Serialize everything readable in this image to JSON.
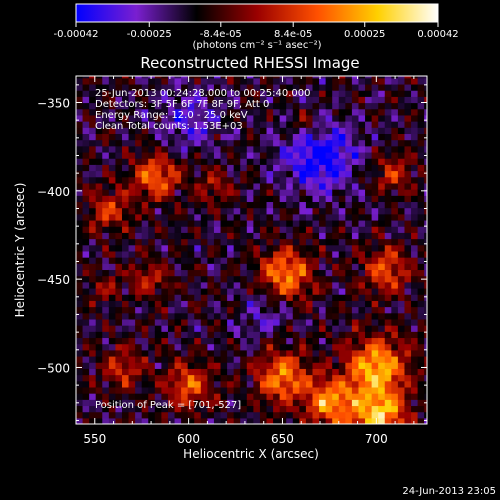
{
  "chart_data": {
    "type": "heatmap",
    "title": "Reconstructed RHESSI Image",
    "xlabel": "Heliocentric X (arcsec)",
    "ylabel": "Heliocentric Y (arcsec)",
    "xlim": [
      540,
      727
    ],
    "ylim": [
      -532,
      -335
    ],
    "x_ticks": [
      550,
      600,
      650,
      700
    ],
    "y_ticks": [
      -350,
      -400,
      -450,
      -500
    ],
    "colorbar": {
      "min": -0.00042,
      "max": 0.00042,
      "ticks": [
        -0.00042,
        -0.00025,
        -8.4e-05,
        8.4e-05,
        0.00025,
        0.00042
      ],
      "tick_labels": [
        "-0.00042",
        "-0.00025",
        "-8.4e-05",
        "8.4e-05",
        "0.00025",
        "0.00042"
      ],
      "unit_label": "(photons cm⁻² s⁻¹ asec⁻²)",
      "colors": [
        "#0000ff",
        "#7a1fd0",
        "#000000",
        "#9a0000",
        "#ff5000",
        "#ffd000",
        "#ffffff"
      ]
    },
    "info_lines": [
      "25-Jun-2013 00:24:28.000 to 00:25:40.000",
      "Detectors: 3F 5F 6F 7F 8F 9F, Att 0",
      "Energy Range: 12.0 - 25.0 keV",
      "Clean    Total counts: 1.53E+03"
    ],
    "peak_label": "Position of Peak = [701,-527]",
    "peak_position": [
      701,
      -527
    ],
    "background_level": -0.00015,
    "sources": [
      {
        "x": 583,
        "y": -392,
        "sigma": 9,
        "amp": 0.0003
      },
      {
        "x": 558,
        "y": -410,
        "sigma": 8,
        "amp": 0.00022
      },
      {
        "x": 615,
        "y": -398,
        "sigma": 7,
        "amp": 0.00016
      },
      {
        "x": 663,
        "y": -363,
        "sigma": 6,
        "amp": 0.00016
      },
      {
        "x": 710,
        "y": -390,
        "sigma": 8,
        "amp": 0.0002
      },
      {
        "x": 652,
        "y": -447,
        "sigma": 10,
        "amp": 0.00034
      },
      {
        "x": 705,
        "y": -445,
        "sigma": 9,
        "amp": 0.00026
      },
      {
        "x": 580,
        "y": -450,
        "sigma": 8,
        "amp": 0.00018
      },
      {
        "x": 600,
        "y": -510,
        "sigma": 9,
        "amp": 0.00028
      },
      {
        "x": 565,
        "y": -500,
        "sigma": 8,
        "amp": 0.0002
      },
      {
        "x": 650,
        "y": -505,
        "sigma": 10,
        "amp": 0.00034
      },
      {
        "x": 700,
        "y": -500,
        "sigma": 12,
        "amp": 0.0004
      },
      {
        "x": 701,
        "y": -527,
        "sigma": 10,
        "amp": 0.00042
      },
      {
        "x": 675,
        "y": -520,
        "sigma": 9,
        "amp": 0.00036
      },
      {
        "x": 555,
        "y": -455,
        "sigma": 6,
        "amp": 0.00014
      }
    ],
    "negative_regions": [
      {
        "x": 670,
        "y": -380,
        "sigma": 14,
        "amp": -0.00028
      },
      {
        "x": 600,
        "y": -360,
        "sigma": 12,
        "amp": -0.00016
      },
      {
        "x": 640,
        "y": -470,
        "sigma": 10,
        "amp": -0.00012
      }
    ]
  },
  "footer": {
    "date": "24-Jun-2013 23:05"
  }
}
